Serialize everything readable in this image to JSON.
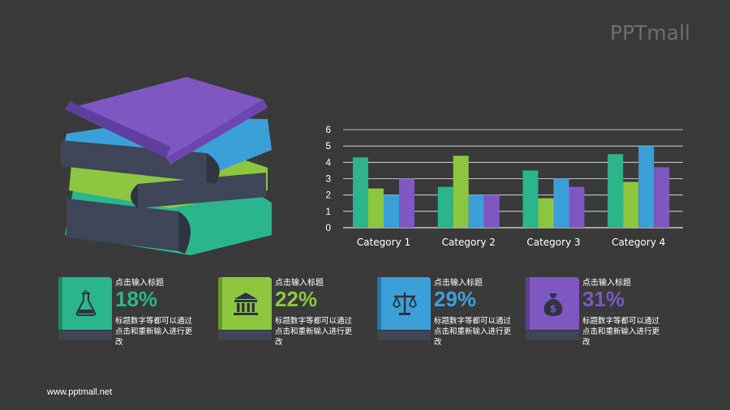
{
  "brand": {
    "logo_text": "PPTmall",
    "footer_url": "www.pptmall.net"
  },
  "chart_data": {
    "type": "bar",
    "categories": [
      "Category 1",
      "Category 2",
      "Category 3",
      "Category 4"
    ],
    "series": [
      {
        "color": "#2bb58a",
        "values": [
          4.3,
          2.5,
          3.5,
          4.5
        ]
      },
      {
        "color": "#8dc63f",
        "values": [
          2.4,
          4.4,
          1.8,
          2.8
        ]
      },
      {
        "color": "#3b9fd8",
        "values": [
          2.0,
          2.0,
          3.0,
          5.0
        ]
      },
      {
        "color": "#7e57c2",
        "values": [
          3.0,
          2.0,
          2.5,
          3.7
        ]
      }
    ],
    "yticks": [
      "0",
      "1",
      "2",
      "3",
      "4",
      "5",
      "6"
    ],
    "ylim": [
      0,
      6
    ],
    "grid": true,
    "legend": "none"
  },
  "cards": [
    {
      "title": "点击输入标题",
      "percent": "18%",
      "desc": "标题数字等都可以通过点击和重新输入进行更改",
      "color": "#2bb58a",
      "icon": "flask-icon"
    },
    {
      "title": "点击输入标题",
      "percent": "22%",
      "desc": "标题数字等都可以通过点击和重新输入进行更改",
      "color": "#8dc63f",
      "icon": "bank-icon"
    },
    {
      "title": "点击输入标题",
      "percent": "29%",
      "desc": "标题数字等都可以通过点击和重新输入进行更改",
      "color": "#3b9fd8",
      "icon": "scales-icon"
    },
    {
      "title": "点击输入标题",
      "percent": "31%",
      "desc": "标题数字等都可以通过点击和重新输入进行更改",
      "color": "#7e57c2",
      "icon": "money-bag-icon"
    }
  ]
}
